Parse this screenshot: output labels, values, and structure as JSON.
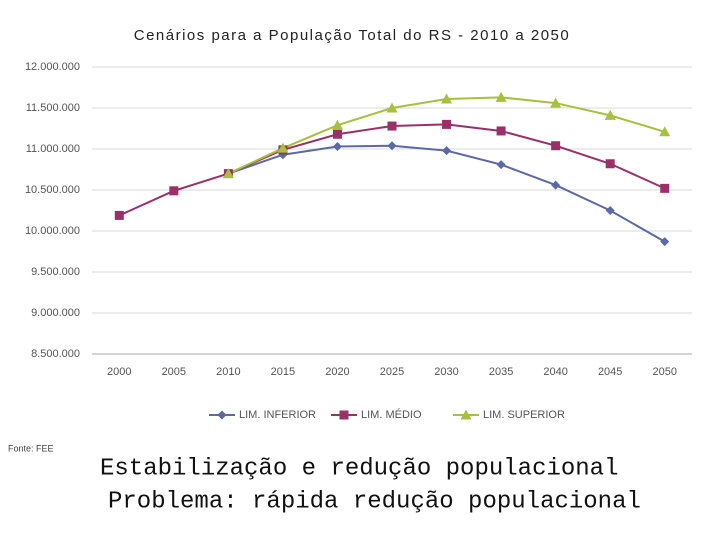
{
  "chart_data": {
    "type": "line",
    "title": "Cenários para a População Total do RS - 2010 a 2050",
    "categories": [
      "2000",
      "2005",
      "2010",
      "2015",
      "2020",
      "2025",
      "2030",
      "2035",
      "2040",
      "2045",
      "2050"
    ],
    "series": [
      {
        "name": "LIM. INFERIOR",
        "color": "#5b6aa6",
        "marker": "diamond",
        "values": [
          null,
          null,
          10700000,
          10930000,
          11030000,
          11040000,
          10980000,
          10810000,
          10560000,
          10250000,
          9870000
        ]
      },
      {
        "name": "LIM. MÉDIO",
        "color": "#9b2f68",
        "marker": "square",
        "values": [
          10190000,
          10490000,
          10700000,
          10990000,
          11180000,
          11280000,
          11300000,
          11220000,
          11040000,
          10820000,
          10520000
        ]
      },
      {
        "name": "LIM. SUPERIOR",
        "color": "#a6c13b",
        "marker": "triangle",
        "values": [
          null,
          null,
          10700000,
          11010000,
          11290000,
          11500000,
          11610000,
          11630000,
          11560000,
          11410000,
          11210000
        ]
      }
    ],
    "ylim": [
      8500000,
      12000000
    ],
    "yticks": [
      {
        "value": 8500000,
        "label": "8.500.000"
      },
      {
        "value": 9000000,
        "label": "9.000.000"
      },
      {
        "value": 9500000,
        "label": "9.500.000"
      },
      {
        "value": 10000000,
        "label": "10.000.000"
      },
      {
        "value": 10500000,
        "label": "10.500.000"
      },
      {
        "value": 11000000,
        "label": "11.000.000"
      },
      {
        "value": 11500000,
        "label": "11.500.000"
      },
      {
        "value": 12000000,
        "label": "12.000.000"
      }
    ],
    "grid": true,
    "legend": "bottom"
  },
  "source": "Fonte: FEE",
  "notes": [
    "Estabilização e redução populacional",
    "Problema: rápida redução populacional"
  ]
}
